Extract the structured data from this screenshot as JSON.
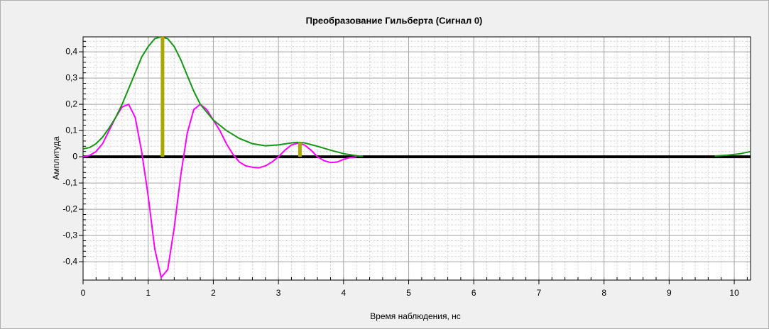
{
  "chart_data": {
    "type": "line",
    "title": "Преобразование Гильберта (Сигнал 0)",
    "xlabel": "Время наблюдения, нс",
    "ylabel": "Амплитуда",
    "xlim": [
      0,
      10.25
    ],
    "ylim": [
      -0.47,
      0.457
    ],
    "xticks": [
      0,
      1,
      2,
      3,
      4,
      5,
      6,
      7,
      8,
      9,
      10
    ],
    "yticks": [
      {
        "value": -0.4,
        "label": "-0,4"
      },
      {
        "value": -0.3,
        "label": "-0,3"
      },
      {
        "value": -0.2,
        "label": "-0,2"
      },
      {
        "value": -0.1,
        "label": "-0,1"
      },
      0,
      {
        "value": 0.1,
        "label": "0,1"
      },
      {
        "value": 0.2,
        "label": "0,2"
      },
      {
        "value": 0.3,
        "label": "0,3"
      },
      {
        "value": 0.4,
        "label": "0,4"
      }
    ],
    "grid": true,
    "series": [
      {
        "color": "#ff00ff",
        "x": [
          0,
          0.1,
          0.2,
          0.3,
          0.4,
          0.5,
          0.6,
          0.7,
          0.8,
          0.9,
          1.0,
          1.1,
          1.2,
          1.3,
          1.4,
          1.5,
          1.6,
          1.7,
          1.8,
          1.9,
          2.0,
          2.1,
          2.2,
          2.3,
          2.4,
          2.5,
          2.6,
          2.7,
          2.8,
          2.9,
          3.0,
          3.1,
          3.2,
          3.3,
          3.4,
          3.5,
          3.6,
          3.7,
          3.8,
          3.9,
          4.0,
          4.1,
          4.2
        ],
        "values": [
          0.0,
          0.005,
          0.02,
          0.05,
          0.1,
          0.15,
          0.19,
          0.2,
          0.15,
          0.02,
          -0.15,
          -0.35,
          -0.46,
          -0.43,
          -0.27,
          -0.07,
          0.09,
          0.18,
          0.2,
          0.18,
          0.14,
          0.1,
          0.05,
          0.01,
          -0.02,
          -0.035,
          -0.04,
          -0.042,
          -0.035,
          -0.02,
          0.0,
          0.025,
          0.045,
          0.052,
          0.045,
          0.025,
          0.0,
          -0.015,
          -0.022,
          -0.02,
          -0.01,
          -0.003,
          0.0
        ]
      },
      {
        "color": "#149614",
        "x": [
          0,
          0.1,
          0.2,
          0.3,
          0.4,
          0.5,
          0.6,
          0.7,
          0.8,
          0.9,
          1.0,
          1.1,
          1.2,
          1.3,
          1.4,
          1.5,
          1.6,
          1.7,
          1.8,
          1.9,
          2.0,
          2.2,
          2.4,
          2.6,
          2.8,
          3.0,
          3.2,
          3.3,
          3.4,
          3.6,
          3.8,
          4.0,
          4.2,
          4.3,
          7,
          9.7,
          9.9,
          10.1,
          10.25
        ],
        "values": [
          0.03,
          0.035,
          0.05,
          0.075,
          0.11,
          0.15,
          0.2,
          0.26,
          0.32,
          0.38,
          0.42,
          0.45,
          0.457,
          0.45,
          0.42,
          0.37,
          0.31,
          0.25,
          0.2,
          0.17,
          0.14,
          0.1,
          0.07,
          0.05,
          0.042,
          0.045,
          0.053,
          0.055,
          0.053,
          0.04,
          0.025,
          0.012,
          0.004,
          0.002,
          null,
          0.003,
          0.006,
          0.012,
          0.02
        ]
      }
    ],
    "stems": {
      "color": "#a8a800",
      "x": [
        1.22,
        3.33
      ],
      "values": [
        0.457,
        0.055
      ]
    }
  }
}
